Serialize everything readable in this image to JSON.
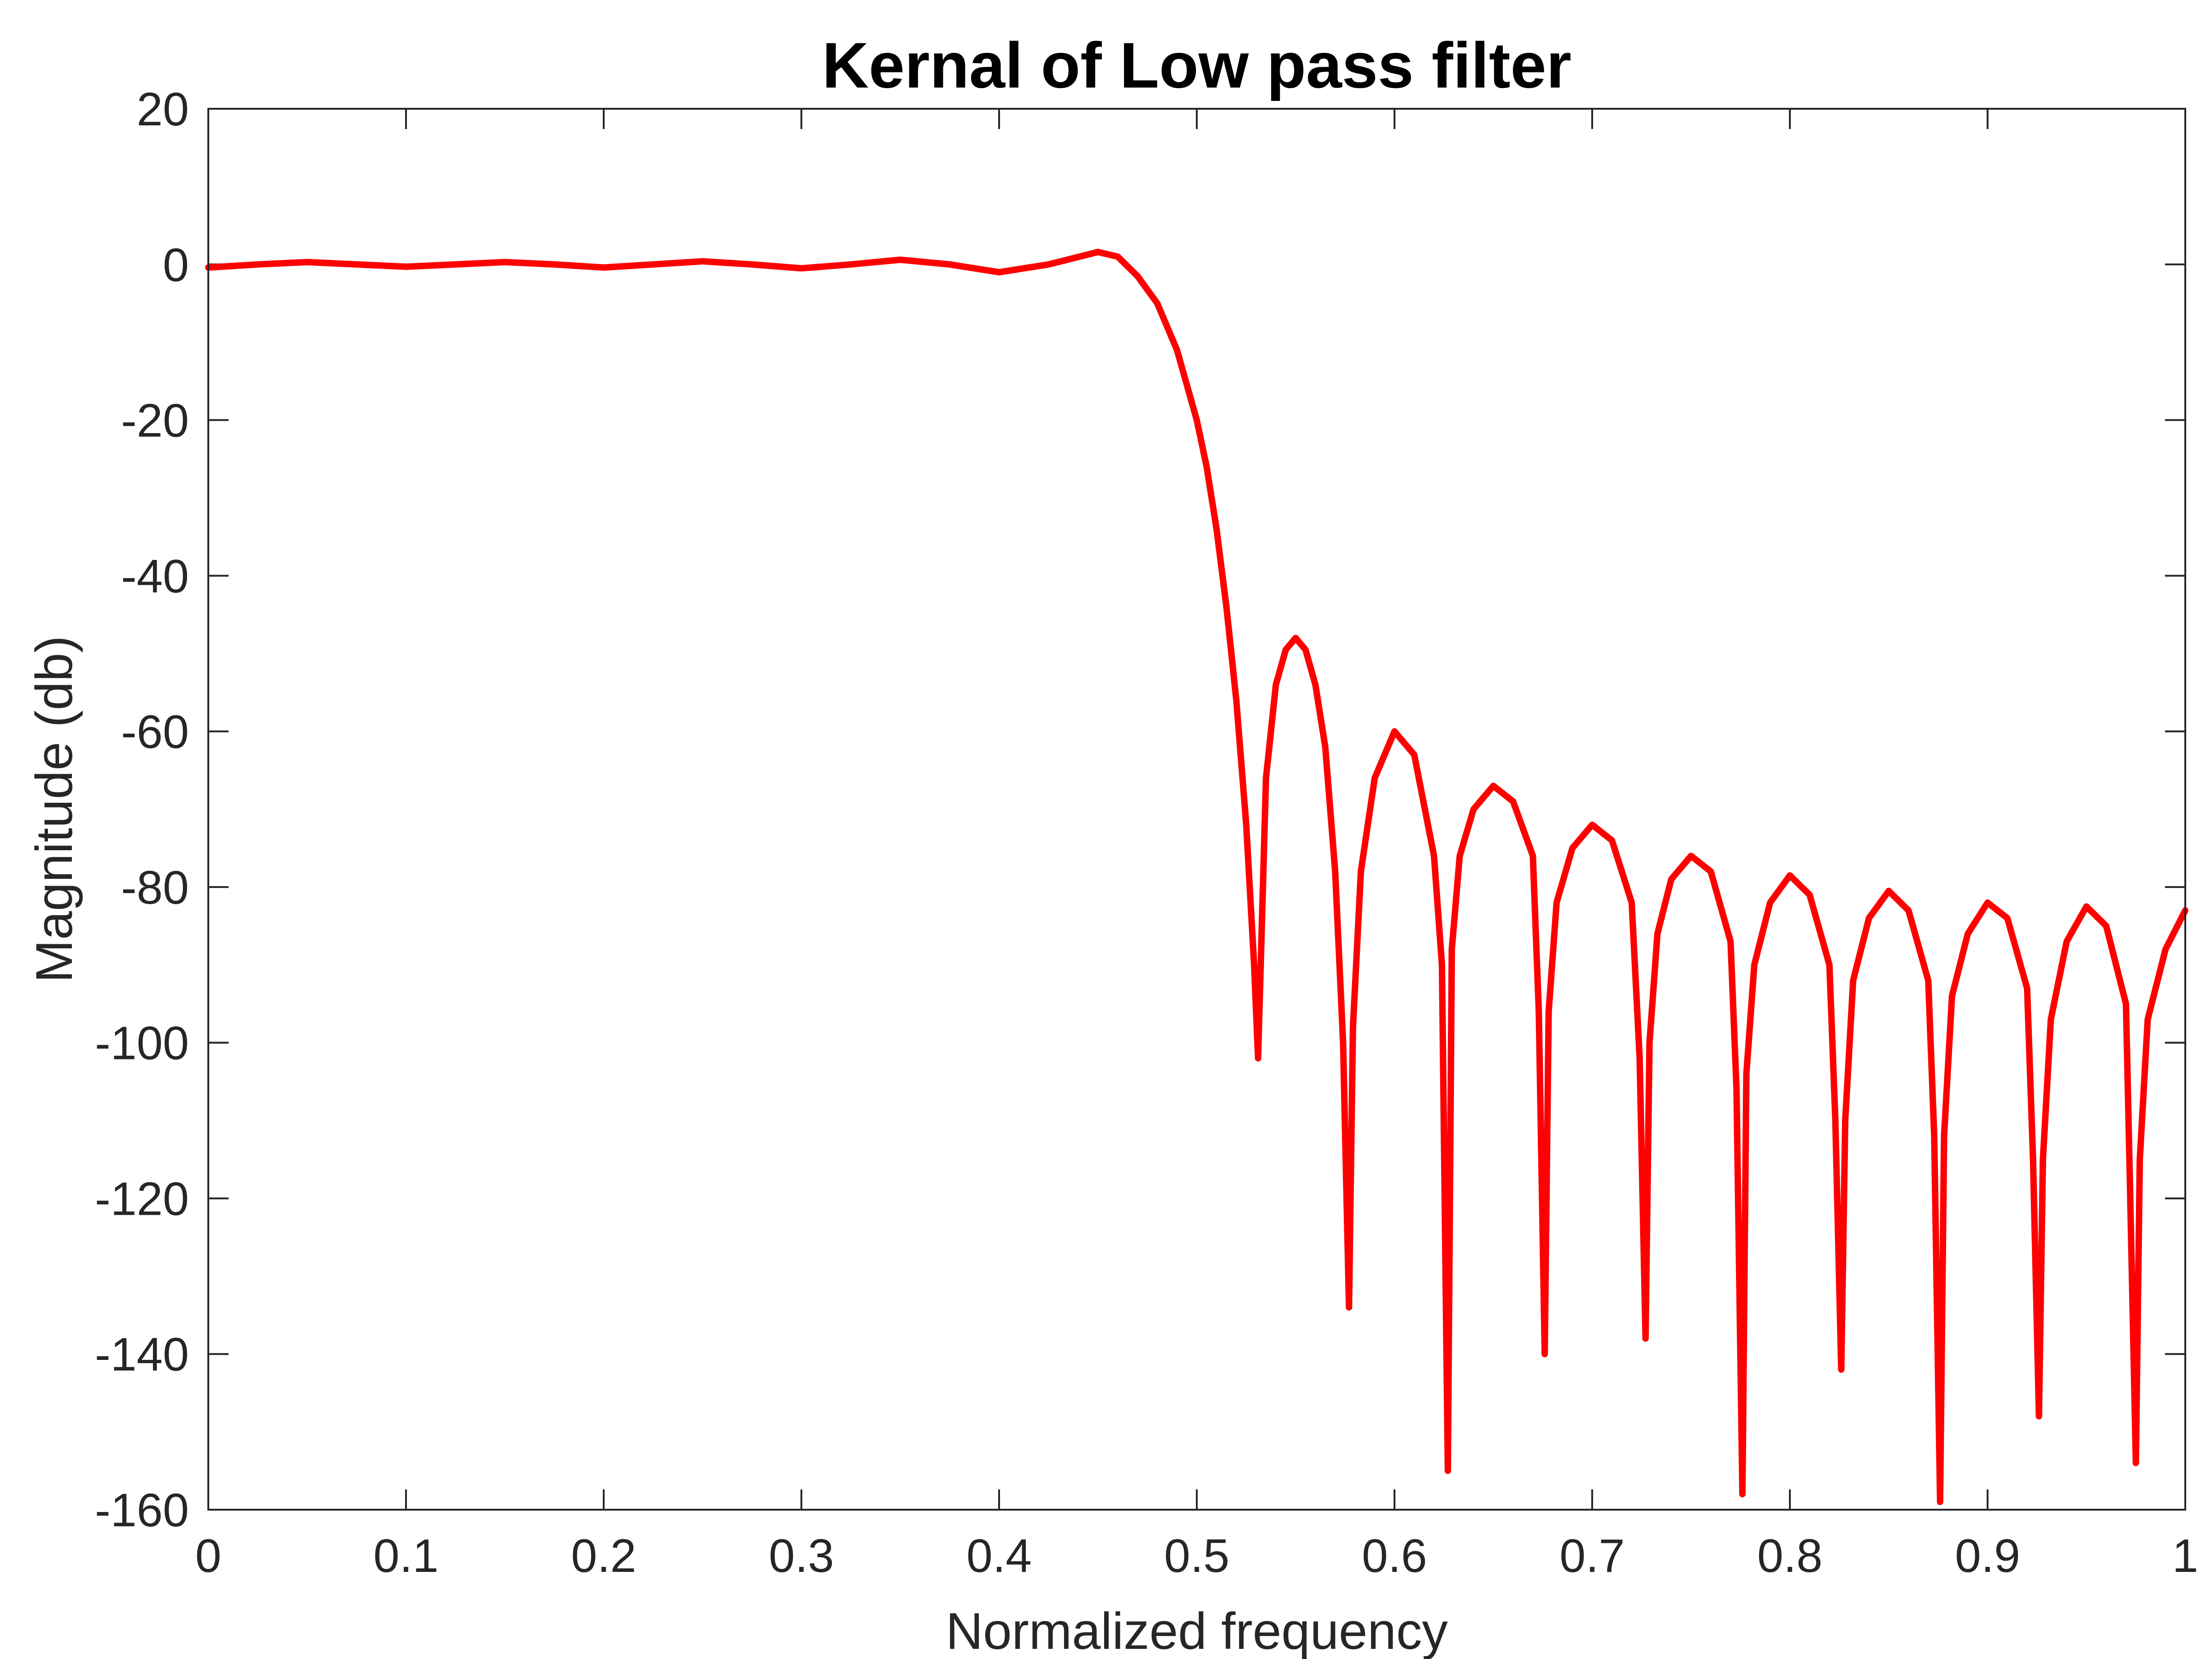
{
  "chart_data": {
    "type": "line",
    "title": "Kernal of Low pass filter",
    "xlabel": "Normalized frequency",
    "ylabel": "Magnitude (db)",
    "xlim": [
      0,
      1
    ],
    "ylim": [
      -160,
      20
    ],
    "xticks": [
      0,
      0.1,
      0.2,
      0.3,
      0.4,
      0.5,
      0.6,
      0.7,
      0.8,
      0.9,
      1
    ],
    "xtick_labels": [
      "0",
      "0.1",
      "0.2",
      "0.3",
      "0.4",
      "0.5",
      "0.6",
      "0.7",
      "0.8",
      "0.9",
      "1"
    ],
    "yticks": [
      20,
      0,
      -20,
      -40,
      -60,
      -80,
      -100,
      -120,
      -140,
      -160
    ],
    "ytick_labels": [
      "20",
      "0",
      "-20",
      "-40",
      "-60",
      "-80",
      "-100",
      "-120",
      "-140",
      "-160"
    ],
    "grid": false,
    "box": true,
    "series": [
      {
        "color": "#ff0000",
        "x": [
          0,
          0.025,
          0.05,
          0.075,
          0.1,
          0.125,
          0.15,
          0.175,
          0.2,
          0.225,
          0.25,
          0.275,
          0.3,
          0.325,
          0.35,
          0.375,
          0.4,
          0.425,
          0.45,
          0.46,
          0.47,
          0.48,
          0.49,
          0.5,
          0.505,
          0.51,
          0.515,
          0.52,
          0.525,
          0.529,
          0.531,
          0.535,
          0.54,
          0.545,
          0.55,
          0.555,
          0.56,
          0.565,
          0.57,
          0.574,
          0.577,
          0.579,
          0.583,
          0.59,
          0.6,
          0.61,
          0.62,
          0.624,
          0.627,
          0.629,
          0.633,
          0.64,
          0.65,
          0.66,
          0.67,
          0.673,
          0.676,
          0.678,
          0.682,
          0.69,
          0.7,
          0.71,
          0.72,
          0.724,
          0.727,
          0.729,
          0.733,
          0.74,
          0.75,
          0.76,
          0.77,
          0.773,
          0.776,
          0.778,
          0.782,
          0.79,
          0.8,
          0.81,
          0.82,
          0.823,
          0.826,
          0.828,
          0.832,
          0.84,
          0.85,
          0.86,
          0.87,
          0.873,
          0.876,
          0.878,
          0.882,
          0.89,
          0.9,
          0.91,
          0.92,
          0.923,
          0.926,
          0.928,
          0.932,
          0.94,
          0.95,
          0.96,
          0.97,
          0.972,
          0.975,
          0.977,
          0.981,
          0.99,
          1
        ],
        "y": [
          -0.4,
          0,
          0.3,
          0,
          -0.3,
          0,
          0.3,
          0,
          -0.4,
          0,
          0.4,
          0,
          -0.5,
          0,
          0.6,
          0,
          -1.0,
          0,
          1.6,
          1.0,
          -1.5,
          -5,
          -11,
          -20,
          -26,
          -34,
          -44,
          -56,
          -72,
          -90,
          -102,
          -66,
          -54,
          -49.5,
          -48,
          -49.5,
          -54,
          -62,
          -78,
          -100,
          -134,
          -98,
          -78,
          -66,
          -60,
          -63,
          -76,
          -90,
          -155,
          -88,
          -76,
          -70,
          -67,
          -69,
          -76,
          -96,
          -140,
          -96,
          -82,
          -75,
          -72,
          -74,
          -82,
          -102,
          -138,
          -100,
          -86,
          -79,
          -76,
          -78,
          -87,
          -106,
          -158,
          -104,
          -90,
          -82,
          -78.5,
          -81,
          -90,
          -110,
          -142,
          -110,
          -92,
          -84,
          -80.5,
          -83,
          -92,
          -112,
          -159,
          -112,
          -94,
          -86,
          -82,
          -84,
          -93,
          -115,
          -148,
          -115,
          -97,
          -87,
          -82.5,
          -85,
          -95,
          -118,
          -154,
          -115,
          -97,
          -88,
          -83
        ]
      }
    ]
  }
}
